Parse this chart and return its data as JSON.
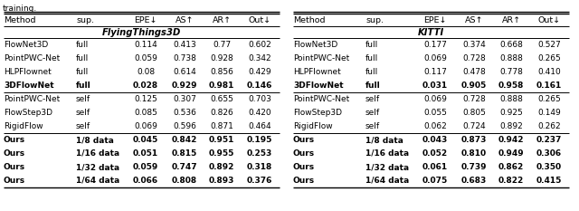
{
  "title_text": "training.",
  "left_table": {
    "section_title": "FlyingThings3D",
    "headers": [
      "Method",
      "sup.",
      "EPE↓",
      "AS↑",
      "AR↑",
      "Out↓"
    ],
    "rows": [
      {
        "method": "FlowNet3D",
        "sup": "full",
        "epe": "0.114",
        "as_": "0.413",
        "ar": "0.77",
        "out": "0.602",
        "bold": false
      },
      {
        "method": "PointPWC-Net",
        "sup": "full",
        "epe": "0.059",
        "as_": "0.738",
        "ar": "0.928",
        "out": "0.342",
        "bold": false
      },
      {
        "method": "HLPFlownet",
        "sup": "full",
        "epe": "0.08",
        "as_": "0.614",
        "ar": "0.856",
        "out": "0.429",
        "bold": false
      },
      {
        "method": "3DFlowNet",
        "sup": "full",
        "epe": "0.028",
        "as_": "0.929",
        "ar": "0.981",
        "out": "0.146",
        "bold": true
      },
      {
        "method": "PointPWC-Net",
        "sup": "self",
        "epe": "0.125",
        "as_": "0.307",
        "ar": "0.655",
        "out": "0.703",
        "bold": false
      },
      {
        "method": "FlowStep3D",
        "sup": "self",
        "epe": "0.085",
        "as_": "0.536",
        "ar": "0.826",
        "out": "0.420",
        "bold": false
      },
      {
        "method": "RigidFlow",
        "sup": "self",
        "epe": "0.069",
        "as_": "0.596",
        "ar": "0.871",
        "out": "0.464",
        "bold": false
      },
      {
        "method": "Ours",
        "sup": "1/8 data",
        "epe": "0.045",
        "as_": "0.842",
        "ar": "0.951",
        "out": "0.195",
        "bold": true
      },
      {
        "method": "Ours",
        "sup": "1/16 data",
        "epe": "0.051",
        "as_": "0.815",
        "ar": "0.955",
        "out": "0.253",
        "bold": true
      },
      {
        "method": "Ours",
        "sup": "1/32 data",
        "epe": "0.059",
        "as_": "0.747",
        "ar": "0.892",
        "out": "0.318",
        "bold": true
      },
      {
        "method": "Ours",
        "sup": "1/64 data",
        "epe": "0.066",
        "as_": "0.808",
        "ar": "0.893",
        "out": "0.376",
        "bold": true
      }
    ],
    "group_ends": [
      3,
      6
    ]
  },
  "right_table": {
    "section_title": "KITTI",
    "headers": [
      "Method",
      "sup.",
      "EPE↓",
      "AS↑",
      "AR↑",
      "Out↓"
    ],
    "rows": [
      {
        "method": "FlowNet3D",
        "sup": "full",
        "epe": "0.177",
        "as_": "0.374",
        "ar": "0.668",
        "out": "0.527",
        "bold": false
      },
      {
        "method": "PointPWC-Net",
        "sup": "full",
        "epe": "0.069",
        "as_": "0.728",
        "ar": "0.888",
        "out": "0.265",
        "bold": false
      },
      {
        "method": "HLPFlownet",
        "sup": "full",
        "epe": "0.117",
        "as_": "0.478",
        "ar": "0.778",
        "out": "0.410",
        "bold": false
      },
      {
        "method": "3DFlowNet",
        "sup": "full",
        "epe": "0.031",
        "as_": "0.905",
        "ar": "0.958",
        "out": "0.161",
        "bold": true
      },
      {
        "method": "PointPWC-Net",
        "sup": "self",
        "epe": "0.069",
        "as_": "0.728",
        "ar": "0.888",
        "out": "0.265",
        "bold": false
      },
      {
        "method": "FlowStep3D",
        "sup": "self",
        "epe": "0.055",
        "as_": "0.805",
        "ar": "0.925",
        "out": "0.149",
        "bold": false
      },
      {
        "method": "RigidFlow",
        "sup": "self",
        "epe": "0.062",
        "as_": "0.724",
        "ar": "0.892",
        "out": "0.262",
        "bold": false
      },
      {
        "method": "Ours",
        "sup": "1/8 data",
        "epe": "0.043",
        "as_": "0.873",
        "ar": "0.942",
        "out": "0.237",
        "bold": true
      },
      {
        "method": "Ours",
        "sup": "1/16 data",
        "epe": "0.052",
        "as_": "0.810",
        "ar": "0.949",
        "out": "0.306",
        "bold": true
      },
      {
        "method": "Ours",
        "sup": "1/32 data",
        "epe": "0.061",
        "as_": "0.739",
        "ar": "0.862",
        "out": "0.350",
        "bold": true
      },
      {
        "method": "Ours",
        "sup": "1/64 data",
        "epe": "0.075",
        "as_": "0.683",
        "ar": "0.822",
        "out": "0.415",
        "bold": true
      }
    ],
    "group_ends": [
      3,
      6
    ]
  },
  "background_color": "#ffffff"
}
